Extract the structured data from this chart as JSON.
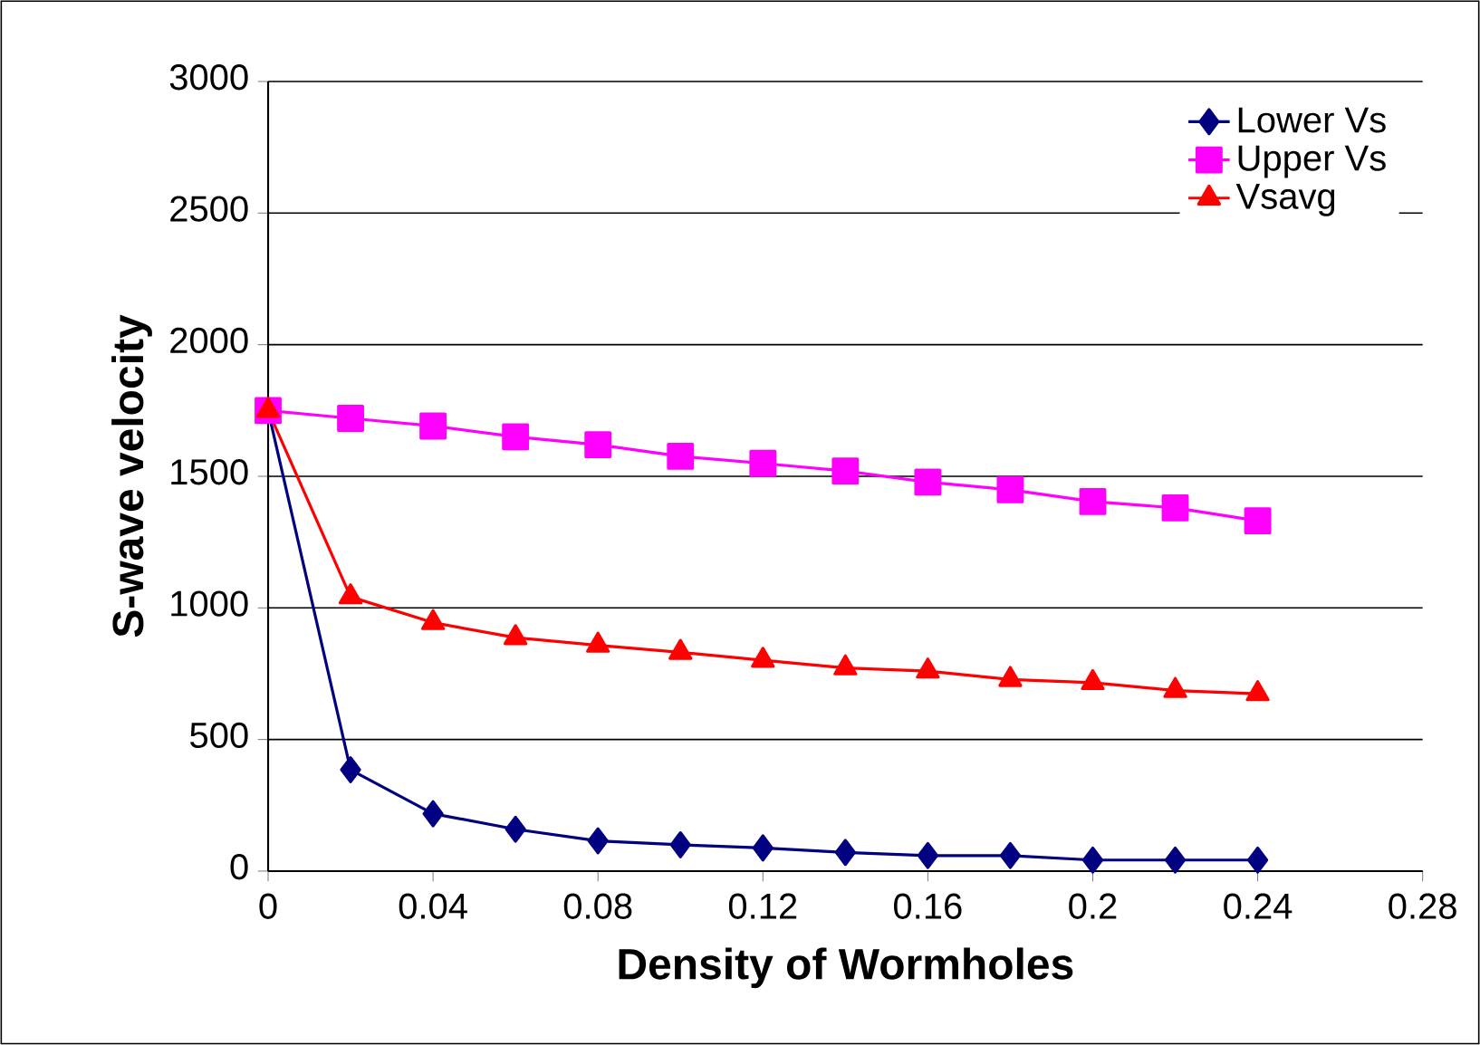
{
  "chart_data": {
    "type": "line",
    "xlabel": "Density of Wormholes",
    "ylabel": "S-wave velocity",
    "x": [
      0,
      0.02,
      0.04,
      0.06,
      0.08,
      0.1,
      0.12,
      0.14,
      0.16,
      0.18,
      0.2,
      0.22,
      0.24
    ],
    "series": [
      {
        "name": "Lower Vs",
        "color": "#000080",
        "marker": "diamond",
        "values": [
          1750,
          385,
          218,
          159,
          115,
          100,
          88,
          71,
          59,
          59,
          42,
          42,
          42
        ]
      },
      {
        "name": "Upper Vs",
        "color": "#ff00ff",
        "marker": "square",
        "values": [
          1750,
          1720,
          1691,
          1650,
          1620,
          1576,
          1549,
          1520,
          1478,
          1449,
          1404,
          1380,
          1331
        ]
      },
      {
        "name": "Vsavg",
        "color": "#ff0000",
        "marker": "triangle",
        "values": [
          1750,
          1042,
          944,
          887,
          858,
          831,
          801,
          772,
          760,
          728,
          716,
          686,
          674
        ]
      }
    ],
    "xlim": [
      0,
      0.28
    ],
    "xticks": [
      0,
      0.04,
      0.08,
      0.12,
      0.16,
      0.2,
      0.24,
      0.28
    ],
    "ylim": [
      0,
      3000
    ],
    "yticks": [
      0,
      500,
      1000,
      1500,
      2000,
      2500,
      3000
    ],
    "grid": "y",
    "legend": "top right"
  }
}
